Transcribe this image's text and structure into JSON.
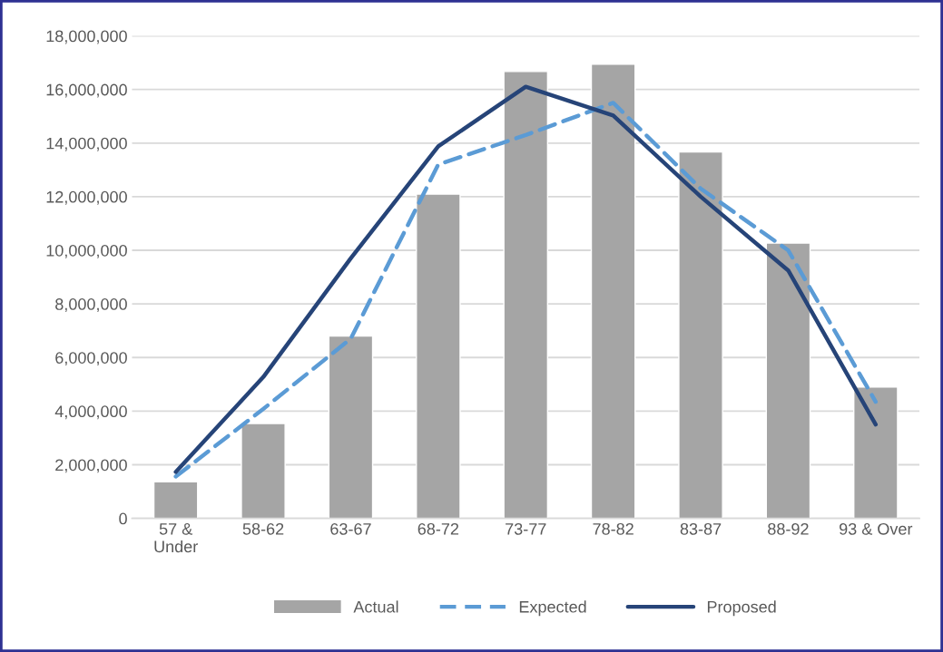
{
  "chart_data": {
    "type": "bar",
    "categories": [
      "57 &\nUnder",
      "58-62",
      "63-67",
      "68-72",
      "73-77",
      "78-82",
      "83-87",
      "88-92",
      "93 & Over"
    ],
    "series": [
      {
        "name": "Actual",
        "color": "#a5a5a5",
        "values": [
          1360000,
          3540000,
          6800000,
          12100000,
          16670000,
          16940000,
          13670000,
          10270000,
          4900000
        ]
      },
      {
        "name": "Expected",
        "type": "line",
        "line_style": "dashed",
        "color": "#5b9bd5",
        "values": [
          1560000,
          4080000,
          6700000,
          13200000,
          14300000,
          15500000,
          12300000,
          10000000,
          4350000
        ]
      },
      {
        "name": "Proposed",
        "type": "line",
        "line_style": "solid",
        "color": "#264478",
        "values": [
          1730000,
          5270000,
          9700000,
          13880000,
          16100000,
          15030000,
          12000000,
          9250000,
          3500000
        ]
      }
    ],
    "ylim": [
      0,
      18000000
    ],
    "yticks": [
      {
        "value": 0,
        "label": "0"
      },
      {
        "value": 2000000,
        "label": "2,000,000"
      },
      {
        "value": 4000000,
        "label": "4,000,000"
      },
      {
        "value": 6000000,
        "label": "6,000,000"
      },
      {
        "value": 8000000,
        "label": "8,000,000"
      },
      {
        "value": 10000000,
        "label": "10,000,000"
      },
      {
        "value": 12000000,
        "label": "12,000,000"
      },
      {
        "value": 14000000,
        "label": "14,000,000"
      },
      {
        "value": 16000000,
        "label": "16,000,000"
      },
      {
        "value": 18000000,
        "label": "18,000,000"
      }
    ],
    "grid": "y",
    "legend": "bottom"
  }
}
